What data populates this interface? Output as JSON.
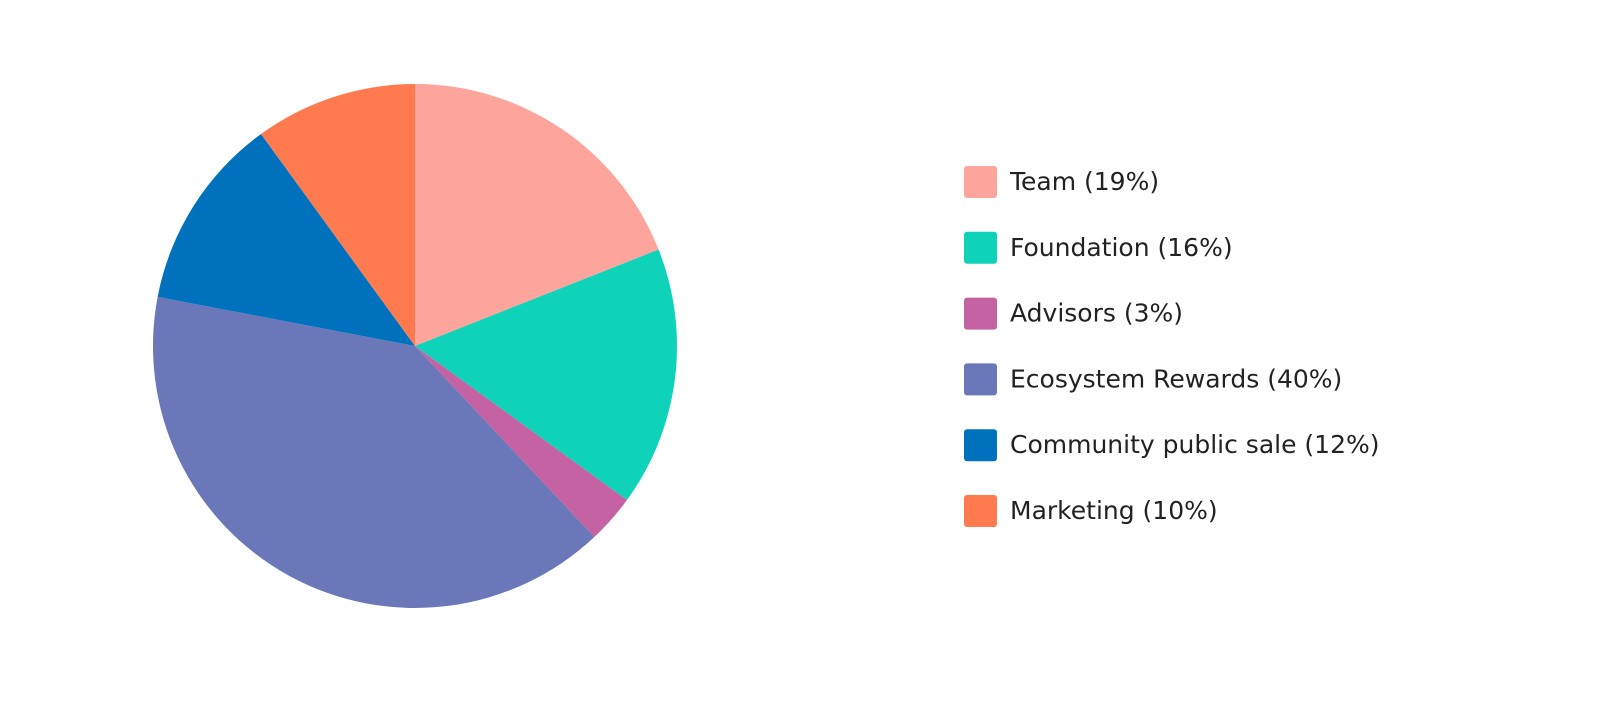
{
  "chart_data": {
    "type": "pie",
    "categories": [
      "Team (19%)",
      "Foundation (16%)",
      "Advisors (3%)",
      "Ecosystem Rewards (40%)",
      "Community public sale (12%)",
      "Marketing (10%)"
    ],
    "values": [
      19,
      16,
      3,
      40,
      12,
      10
    ],
    "colors": [
      "#fda59c",
      "#0fd3b8",
      "#c562a4",
      "#6a77b9",
      "#0071bc",
      "#ff7b4f"
    ],
    "legend": "right"
  }
}
